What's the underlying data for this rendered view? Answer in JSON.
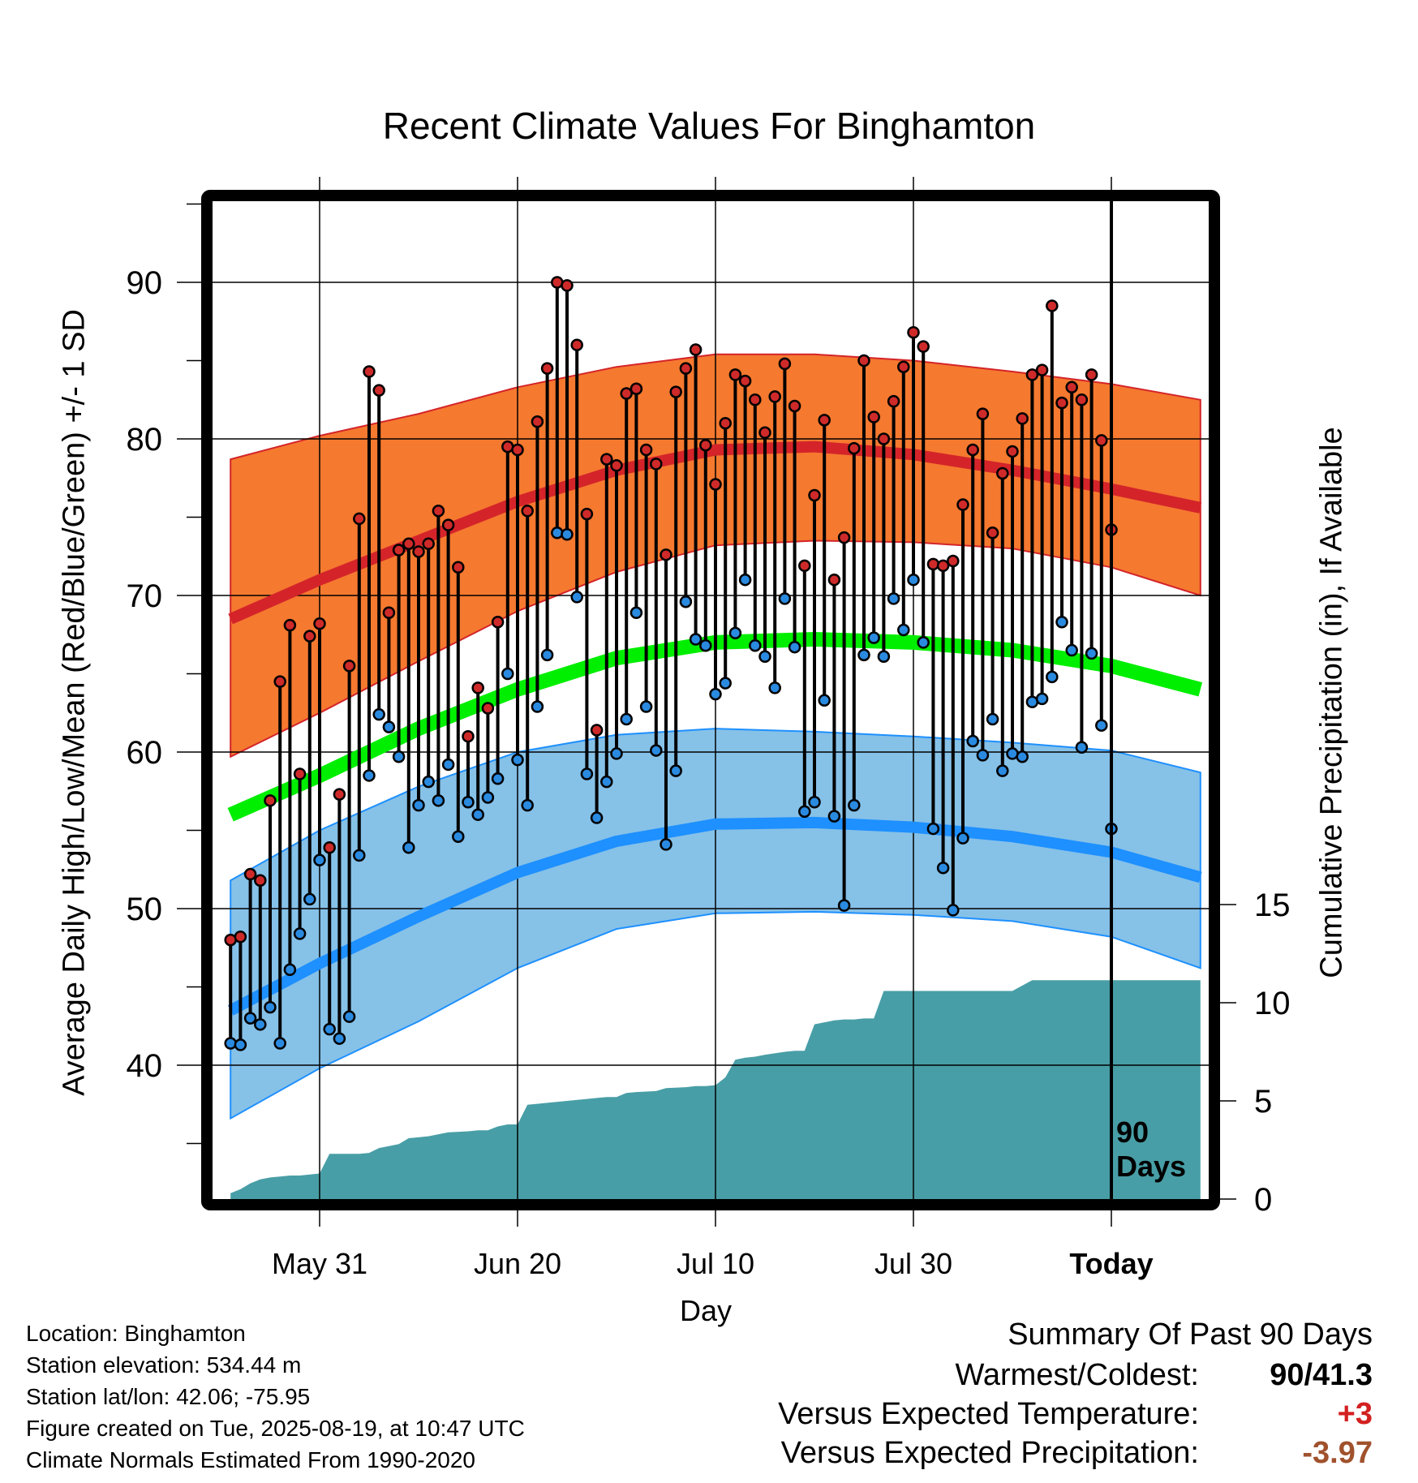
{
  "chart_data": {
    "type": "line",
    "title": "Recent Climate Values For Binghamton",
    "xlabel": "Day",
    "ylabel": "Average Daily High/Low/Mean (Red/Blue/Green) +/- 1 SD",
    "y2label": "Cumulative Precipitation (in), If Available",
    "ylim": [
      31,
      95
    ],
    "yticks": [
      40,
      50,
      60,
      70,
      80,
      90
    ],
    "y2lim": [
      0,
      36
    ],
    "y2ticks": [
      0,
      5,
      10,
      15
    ],
    "xlim": [
      -100,
      0
    ],
    "xticks": [
      {
        "x": -80,
        "label": "May 31"
      },
      {
        "x": -60,
        "label": "Jun 20"
      },
      {
        "x": -40,
        "label": "Jul 10"
      },
      {
        "x": -20,
        "label": "Jul 30"
      },
      {
        "x": 0,
        "label": "Today"
      }
    ],
    "today_marker": {
      "x": 0,
      "label": "90\nDays"
    },
    "normals": {
      "x": [
        -89,
        -80,
        -70,
        -60,
        -50,
        -40,
        -30,
        -20,
        -10,
        0,
        9
      ],
      "high_mean": [
        68.5,
        71.0,
        73.5,
        76.0,
        78.0,
        79.3,
        79.5,
        79.0,
        78.0,
        76.8,
        75.6
      ],
      "high_upper": [
        78.7,
        80.2,
        81.6,
        83.3,
        84.6,
        85.4,
        85.4,
        85.0,
        84.3,
        83.5,
        82.5
      ],
      "high_lower": [
        59.7,
        62.5,
        65.8,
        69.0,
        71.5,
        73.2,
        73.5,
        73.4,
        73.0,
        71.8,
        70.0
      ],
      "mean_mean": [
        56.0,
        58.5,
        61.5,
        64.0,
        66.0,
        67.0,
        67.2,
        67.0,
        66.5,
        65.5,
        64.0
      ],
      "low_mean": [
        43.5,
        46.5,
        49.5,
        52.3,
        54.3,
        55.4,
        55.5,
        55.2,
        54.6,
        53.6,
        52.0
      ],
      "low_upper": [
        51.8,
        55.0,
        57.8,
        60.0,
        61.1,
        61.5,
        61.3,
        61.0,
        60.6,
        60.1,
        58.7
      ],
      "low_lower": [
        36.6,
        39.8,
        42.8,
        46.2,
        48.7,
        49.7,
        49.8,
        49.6,
        49.2,
        48.2,
        46.2
      ]
    },
    "series": [
      {
        "name": "High",
        "values": [
          48.0,
          48.2,
          52.2,
          51.8,
          56.9,
          64.5,
          68.1,
          58.6,
          67.4,
          68.2,
          53.9,
          57.3,
          65.5,
          74.9,
          84.3,
          83.1,
          68.9,
          72.9,
          73.3,
          72.8,
          73.3,
          75.4,
          74.5,
          71.8,
          61.0,
          64.1,
          62.8,
          68.3,
          79.5,
          79.3,
          75.4,
          81.1,
          84.5,
          90.0,
          89.8,
          86.0,
          75.2,
          61.4,
          78.7,
          78.3,
          82.9,
          83.2,
          79.3,
          78.4,
          72.6,
          83.0,
          84.5,
          85.7,
          79.6,
          77.1,
          81.0,
          84.1,
          83.7,
          82.5,
          80.4,
          82.7,
          84.8,
          82.1,
          71.9,
          76.4,
          81.2,
          71.0,
          73.7,
          79.4,
          85.0,
          81.4,
          80.0,
          82.4,
          84.6,
          86.8,
          85.9,
          72.0,
          71.9,
          72.2,
          75.8,
          79.3,
          81.6,
          74.0,
          77.8,
          79.2,
          81.3,
          84.1,
          84.4,
          88.5,
          82.3,
          83.3,
          82.5,
          84.1,
          79.9,
          74.2
        ]
      },
      {
        "name": "Low",
        "values": [
          41.4,
          41.3,
          43.0,
          42.6,
          43.7,
          41.4,
          46.1,
          48.4,
          50.6,
          53.1,
          42.3,
          41.7,
          43.1,
          53.4,
          58.5,
          62.4,
          61.6,
          59.7,
          53.9,
          56.6,
          58.1,
          56.9,
          59.2,
          54.6,
          56.8,
          56.0,
          57.1,
          58.3,
          65.0,
          59.5,
          56.6,
          62.9,
          66.2,
          74.0,
          73.9,
          69.9,
          58.6,
          55.8,
          58.1,
          59.9,
          62.1,
          68.9,
          62.9,
          60.1,
          54.1,
          58.8,
          69.6,
          67.2,
          66.8,
          63.7,
          64.4,
          67.6,
          71.0,
          66.8,
          66.1,
          64.1,
          69.8,
          66.7,
          56.2,
          56.8,
          63.3,
          55.9,
          50.2,
          56.6,
          66.2,
          67.3,
          66.1,
          69.8,
          67.8,
          71.0,
          67.0,
          55.1,
          52.6,
          49.9,
          54.5,
          60.7,
          59.8,
          62.1,
          58.8,
          59.9,
          59.7,
          63.2,
          63.4,
          64.8,
          68.3,
          66.5,
          60.3,
          66.3,
          61.7,
          55.1
        ]
      }
    ],
    "cumulative_precip": {
      "x": [
        -89,
        -88,
        -87,
        -86,
        -85,
        -84,
        -83,
        -82,
        -81,
        -80,
        -79,
        -78,
        -76,
        -75,
        -74,
        -73,
        -72,
        -71,
        -69,
        -67,
        -65,
        -64,
        -63,
        -62,
        -61,
        -60,
        -59,
        -58,
        -57,
        -55,
        -53,
        -52,
        -51,
        -50,
        -49,
        -48,
        -46,
        -45,
        -43,
        -42,
        -41,
        -40,
        -39,
        -38,
        -37,
        -36,
        -35,
        -33,
        -32,
        -31,
        -30,
        -28,
        -27,
        -26,
        -25,
        -24,
        -23,
        -21,
        -20,
        -19,
        -18,
        -17,
        -16,
        -14,
        -12,
        -10,
        -8,
        -7,
        -6,
        -4,
        -2,
        0,
        9
      ],
      "values": [
        0.3,
        0.5,
        0.8,
        1.0,
        1.1,
        1.15,
        1.2,
        1.2,
        1.25,
        1.3,
        2.3,
        2.3,
        2.3,
        2.35,
        2.6,
        2.7,
        2.8,
        3.1,
        3.2,
        3.4,
        3.45,
        3.5,
        3.5,
        3.7,
        3.8,
        3.8,
        4.8,
        4.85,
        4.9,
        5.0,
        5.1,
        5.15,
        5.2,
        5.2,
        5.4,
        5.45,
        5.5,
        5.65,
        5.7,
        5.75,
        5.75,
        5.8,
        6.2,
        7.1,
        7.2,
        7.25,
        7.35,
        7.5,
        7.55,
        7.55,
        8.9,
        9.1,
        9.15,
        9.15,
        9.2,
        9.2,
        10.6,
        10.6,
        10.6,
        10.6,
        10.6,
        10.6,
        10.6,
        10.6,
        10.6,
        10.6,
        11.15,
        11.15,
        11.15,
        11.15,
        11.15,
        11.15,
        11.15
      ]
    }
  },
  "labels": {
    "title": "Recent Climate Values For Binghamton",
    "ylabel": "Average Daily High/Low/Mean (Red/Blue/Green) +/- 1 SD",
    "y2label": "Cumulative Precipitation (in), If Available",
    "xlabel": "Day"
  },
  "info": {
    "location": "Location: Binghamton",
    "elevation": "Station elevation: 534.44 m",
    "latlon": "Station lat/lon: 42.06; -75.95",
    "created": "Figure created on Tue, 2025-08-19, at 10:47 UTC",
    "normals": "Climate Normals Estimated From 1990-2020"
  },
  "summary": {
    "heading": "Summary Of Past 90 Days",
    "warmest_coldest_label": "Warmest/Coldest:",
    "warmest_coldest_value": "90/41.3",
    "temp_label": "Versus Expected Temperature:",
    "temp_value": "+3",
    "precip_label": "Versus Expected Precipitation:",
    "precip_value": "-3.97"
  },
  "colors": {
    "high_band": "#f5792f",
    "high_line": "#d4242a",
    "mean_line": "#00ee00",
    "low_band": "#86c1e8",
    "low_line": "#1e90ff",
    "precip_fill": "#489ea6",
    "high_dot": "#cf2a2a",
    "low_dot": "#2a8ae0"
  }
}
